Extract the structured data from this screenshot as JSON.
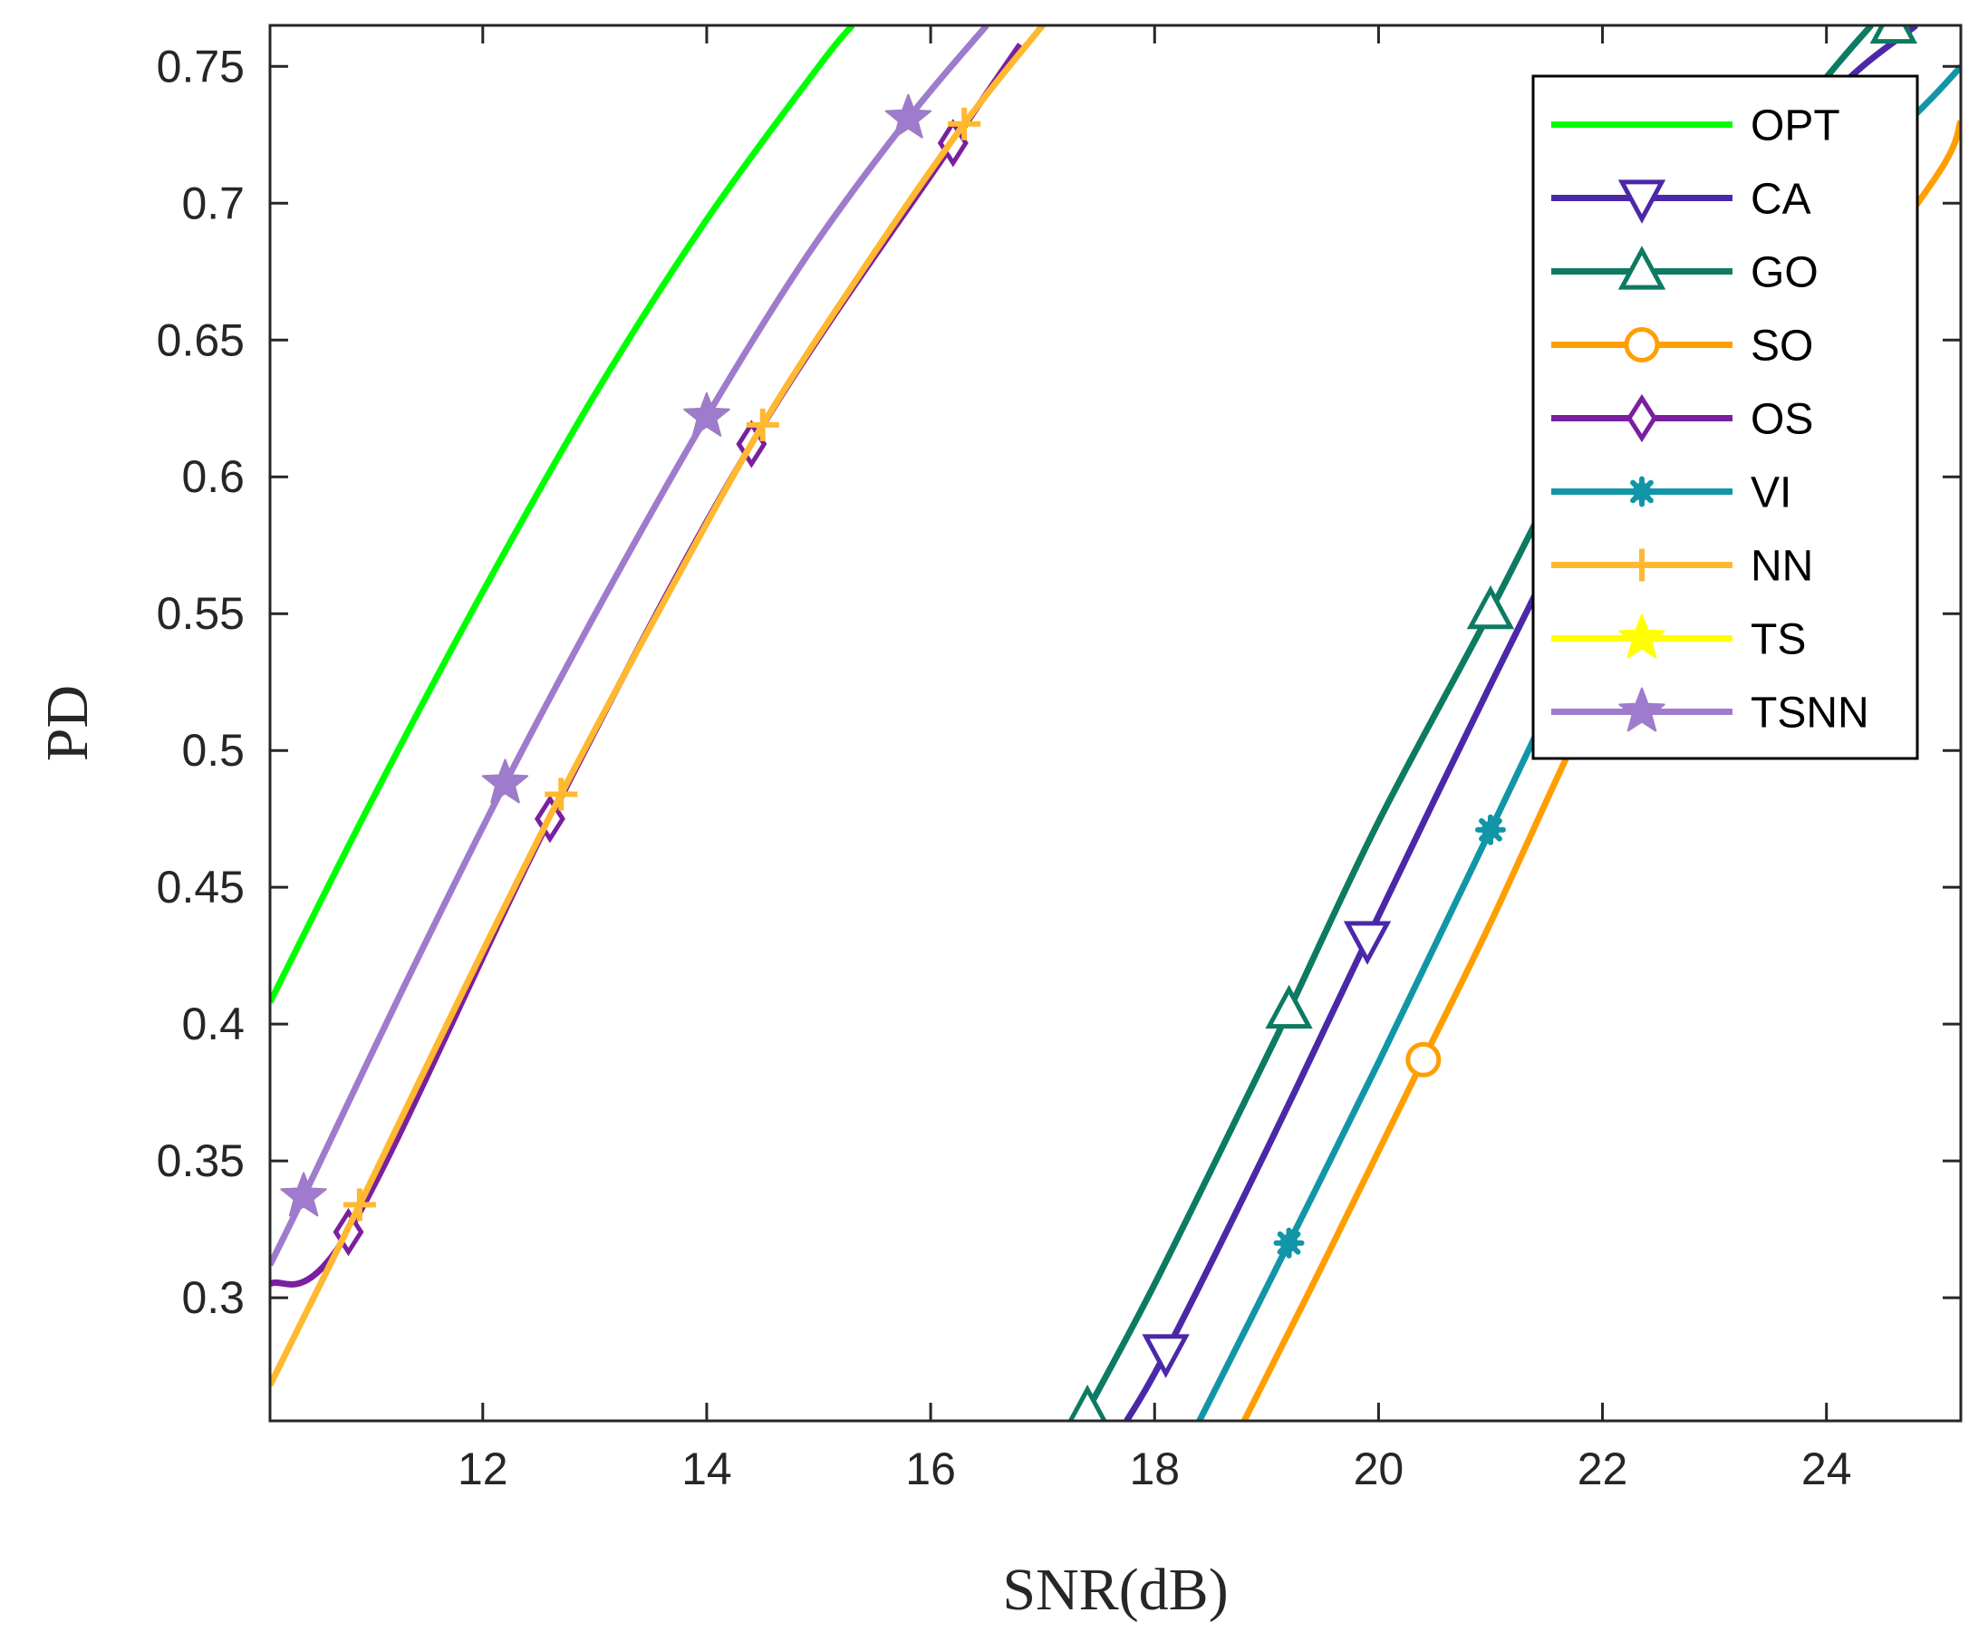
{
  "chart_data": {
    "type": "line",
    "title": "",
    "xlabel": "SNR(dB)",
    "ylabel": "PD",
    "xlim": [
      10.1,
      25.2
    ],
    "ylim": [
      0.255,
      0.765
    ],
    "xticks": [
      12,
      14,
      16,
      18,
      20,
      22,
      24
    ],
    "yticks": [
      0.3,
      0.35,
      0.4,
      0.45,
      0.5,
      0.55,
      0.6,
      0.65,
      0.7,
      0.75
    ],
    "x_tick_labels": [
      "12",
      "14",
      "16",
      "18",
      "20",
      "22",
      "24"
    ],
    "y_tick_labels": [
      "0.3",
      "0.35",
      "0.4",
      "0.45",
      "0.5",
      "0.55",
      "0.6",
      "0.65",
      "0.7",
      "0.75"
    ],
    "grid": false,
    "legend_position": "top-right",
    "series": [
      {
        "name": "OPT",
        "color": "#00ff00",
        "marker": "none",
        "x": [
          10.1,
          11.0,
          12.0,
          13.0,
          14.0,
          15.0,
          15.3
        ],
        "y": [
          0.408,
          0.481,
          0.558,
          0.63,
          0.694,
          0.75,
          0.765
        ],
        "marker_x": []
      },
      {
        "name": "CA",
        "color": "#4b28a8",
        "marker": "triangle-down",
        "x": [
          17.75,
          18.1,
          19.0,
          19.9,
          21.0,
          22.0,
          23.0,
          24.0,
          24.8
        ],
        "y": [
          0.255,
          0.28,
          0.354,
          0.431,
          0.524,
          0.605,
          0.678,
          0.737,
          0.765
        ],
        "marker_x": [
          18.1,
          19.9,
          21.6,
          23.3
        ]
      },
      {
        "name": "GO",
        "color": "#0d7a62",
        "marker": "triangle-up",
        "x": [
          17.35,
          18.0,
          19.0,
          19.2,
          20.0,
          21.0,
          22.0,
          23.0,
          24.0,
          24.4
        ],
        "y": [
          0.255,
          0.305,
          0.388,
          0.405,
          0.474,
          0.551,
          0.63,
          0.695,
          0.746,
          0.765
        ],
        "marker_x": [
          17.4,
          19.2,
          21.0,
          22.8,
          24.6
        ]
      },
      {
        "name": "SO",
        "color": "#ff9e00",
        "marker": "circle",
        "x": [
          18.8,
          19.5,
          20.4,
          21.0,
          22.0,
          23.0,
          24.0,
          25.0,
          25.2
        ],
        "y": [
          0.255,
          0.312,
          0.387,
          0.437,
          0.525,
          0.601,
          0.655,
          0.711,
          0.73
        ],
        "marker_x": [
          20.4,
          22.2,
          24.0
        ]
      },
      {
        "name": "OS",
        "color": "#7a1fa0",
        "marker": "diamond",
        "x": [
          10.1,
          10.8,
          12.6,
          14.4,
          16.2,
          16.8
        ],
        "y": [
          0.305,
          0.324,
          0.475,
          0.612,
          0.722,
          0.758
        ],
        "marker_x": [
          10.8,
          12.6,
          14.4,
          16.2
        ]
      },
      {
        "name": "VI",
        "color": "#1196a8",
        "marker": "asterisk",
        "x": [
          18.4,
          19.2,
          20.0,
          21.0,
          22.0,
          23.0,
          24.0,
          25.0,
          25.2
        ],
        "y": [
          0.255,
          0.32,
          0.386,
          0.471,
          0.556,
          0.634,
          0.697,
          0.741,
          0.75
        ],
        "marker_x": [
          19.2,
          21.0,
          22.8,
          24.6
        ]
      },
      {
        "name": "NN",
        "color": "#ffb830",
        "marker": "plus",
        "x": [
          10.1,
          10.9,
          11.8,
          12.7,
          13.6,
          14.5,
          15.4,
          16.3,
          17.0
        ],
        "y": [
          0.268,
          0.334,
          0.41,
          0.484,
          0.553,
          0.619,
          0.676,
          0.729,
          0.765
        ],
        "marker_x": [
          10.9,
          12.7,
          14.5,
          16.3
        ]
      },
      {
        "name": "TS",
        "color": "#ffff00",
        "marker": "star",
        "x": [
          10.4,
          12.2,
          14.0,
          15.8
        ],
        "y": [
          0.337,
          0.488,
          0.622,
          0.731
        ],
        "marker_x": [
          10.4,
          12.2,
          14.0,
          15.8
        ]
      },
      {
        "name": "TSNN",
        "color": "#9e7bcc",
        "marker": "star",
        "x": [
          10.1,
          10.4,
          11.3,
          12.2,
          13.1,
          14.0,
          14.9,
          15.8,
          16.5
        ],
        "y": [
          0.312,
          0.337,
          0.414,
          0.488,
          0.557,
          0.622,
          0.681,
          0.731,
          0.765
        ],
        "marker_x": [
          10.4,
          12.2,
          14.0,
          15.8
        ]
      }
    ]
  }
}
